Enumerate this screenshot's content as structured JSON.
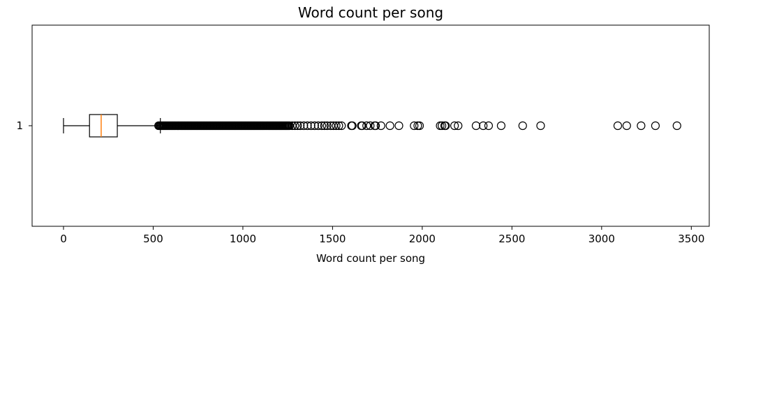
{
  "chart_data": {
    "type": "boxplot",
    "orientation": "horizontal",
    "title": "Word count per song",
    "xlabel": "Word count per song",
    "ylabel": "",
    "xlim": [
      -175,
      3600
    ],
    "x_ticks": [
      0,
      500,
      1000,
      1500,
      2000,
      2500,
      3000,
      3500
    ],
    "y_ticks": [
      "1"
    ],
    "grid": false,
    "series": [
      {
        "category": "1",
        "whisker_low": 0,
        "q1": 145,
        "median": 210,
        "q3": 300,
        "whisker_high": 540,
        "dense_outlier_range": [
          530,
          1260
        ],
        "outliers": [
          1275,
          1290,
          1305,
          1320,
          1340,
          1360,
          1380,
          1400,
          1420,
          1440,
          1455,
          1470,
          1490,
          1505,
          1520,
          1535,
          1550,
          1605,
          1610,
          1660,
          1665,
          1690,
          1710,
          1735,
          1740,
          1770,
          1820,
          1870,
          1955,
          1975,
          1985,
          2100,
          2110,
          2125,
          2130,
          2180,
          2200,
          2300,
          2340,
          2370,
          2440,
          2560,
          2660,
          3090,
          3140,
          3220,
          3300,
          3420
        ]
      }
    ],
    "colors": {
      "box": "#000000",
      "median": "#ff7f0e",
      "outlier_edge": "#000000"
    }
  }
}
